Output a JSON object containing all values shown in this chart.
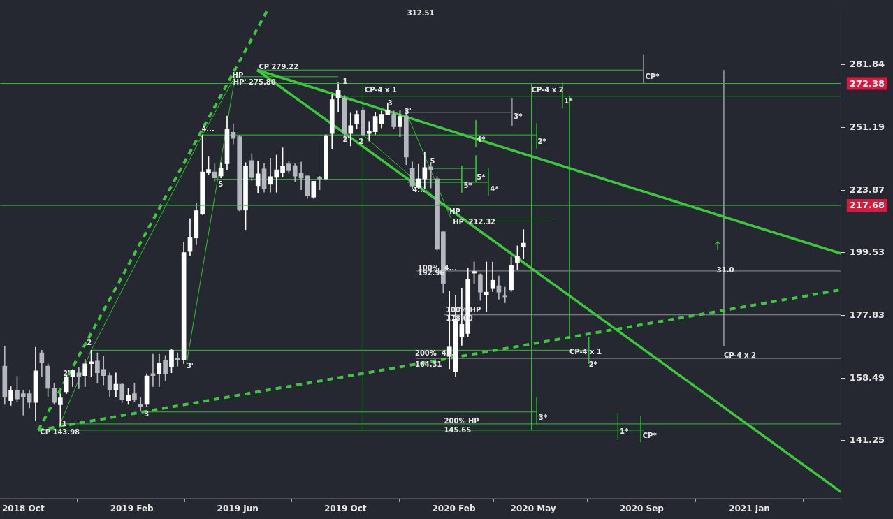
{
  "chart_data": {
    "type": "candlestick",
    "x": [
      "2018-09-10",
      "2018-09-17",
      "2018-09-24",
      "2018-10-01",
      "2018-10-08",
      "2018-10-15",
      "2018-10-22",
      "2018-10-29",
      "2018-11-05",
      "2018-11-12",
      "2018-11-19",
      "2018-11-26",
      "2018-12-03",
      "2018-12-10",
      "2018-12-17",
      "2018-12-24",
      "2018-12-31",
      "2019-01-07",
      "2019-01-14",
      "2019-01-21",
      "2019-01-28",
      "2019-02-04",
      "2019-02-11",
      "2019-02-18",
      "2019-02-25",
      "2019-03-04",
      "2019-03-11",
      "2019-03-18",
      "2019-03-25",
      "2019-04-01",
      "2019-04-08",
      "2019-04-15",
      "2019-04-22",
      "2019-04-29",
      "2019-05-06",
      "2019-05-13",
      "2019-05-20",
      "2019-05-27",
      "2019-06-03",
      "2019-06-10",
      "2019-06-17",
      "2019-06-24",
      "2019-07-01",
      "2019-07-08",
      "2019-07-15",
      "2019-07-22",
      "2019-07-29",
      "2019-08-05",
      "2019-08-12",
      "2019-08-19",
      "2019-08-26",
      "2019-09-02",
      "2019-09-09",
      "2019-09-16",
      "2019-09-23",
      "2019-09-30",
      "2019-10-07",
      "2019-10-14",
      "2019-10-21",
      "2019-10-28",
      "2019-11-04",
      "2019-11-11",
      "2019-11-18",
      "2019-11-25",
      "2019-12-02",
      "2019-12-09",
      "2019-12-16",
      "2019-12-23",
      "2019-12-30",
      "2020-01-06",
      "2020-01-13",
      "2020-01-20",
      "2020-01-27",
      "2020-02-03",
      "2020-02-10",
      "2020-02-17",
      "2020-02-24",
      "2020-03-02",
      "2020-03-09",
      "2020-03-16",
      "2020-03-23",
      "2020-03-30",
      "2020-04-06",
      "2020-04-13",
      "2020-04-20"
    ],
    "ohlc": [
      [
        162,
        168,
        151,
        153
      ],
      [
        152,
        156,
        150.7,
        155
      ],
      [
        155,
        159,
        151.8,
        152.5
      ],
      [
        154,
        155,
        148,
        153
      ],
      [
        154,
        155,
        150,
        151.5
      ],
      [
        151.5,
        167.7,
        146.5,
        160.6
      ],
      [
        166,
        166.8,
        159,
        163
      ],
      [
        162,
        162.7,
        153,
        155.5
      ],
      [
        155.5,
        157,
        151,
        151.5
      ],
      [
        150.9,
        154,
        145.2,
        152.8
      ],
      [
        154.5,
        159.2,
        154,
        158.9
      ],
      [
        158.9,
        161,
        156,
        160.8
      ],
      [
        160,
        161.6,
        155.4,
        159
      ],
      [
        159.2,
        164,
        156,
        162.7
      ],
      [
        162.7,
        166.8,
        159,
        163.3
      ],
      [
        163.5,
        166,
        157,
        160
      ],
      [
        161,
        164.9,
        156.5,
        159.2
      ],
      [
        159.2,
        160,
        153,
        155
      ],
      [
        155,
        160,
        153,
        156.7
      ],
      [
        156.7,
        156.9,
        151.5,
        152.3
      ],
      [
        152,
        155.5,
        151,
        153.6
      ],
      [
        154,
        157,
        151.7,
        152.3
      ],
      [
        151,
        153,
        149.2,
        150.3
      ],
      [
        151,
        159.8,
        150.3,
        159.1
      ],
      [
        159.8,
        165.6,
        156,
        159.2
      ],
      [
        159.8,
        165.6,
        156,
        163
      ],
      [
        163.8,
        165.2,
        157.7,
        159.8
      ],
      [
        161.8,
        167,
        160,
        166.8
      ],
      [
        164.4,
        166,
        162,
        163.9
      ],
      [
        163.9,
        203.5,
        162.7,
        199.6
      ],
      [
        200,
        212.4,
        198.5,
        205.3
      ],
      [
        205,
        218.4,
        202.5,
        215.6
      ],
      [
        214.3,
        247.8,
        214,
        231.5
      ],
      [
        231.3,
        238,
        230.4,
        232.6
      ],
      [
        231.5,
        235,
        227.6,
        229
      ],
      [
        229.8,
        235.5,
        229,
        233
      ],
      [
        235,
        256.6,
        232.5,
        250.6
      ],
      [
        249,
        253,
        243.7,
        246.2
      ],
      [
        247,
        247.6,
        215.5,
        215.8
      ],
      [
        215.8,
        235.5,
        208.2,
        234
      ],
      [
        236.4,
        239.4,
        227.8,
        229.1
      ],
      [
        225.7,
        236,
        222.6,
        230.7
      ],
      [
        232.8,
        235.2,
        223,
        224.6
      ],
      [
        226.3,
        237.5,
        223,
        229.5
      ],
      [
        229.2,
        238.8,
        223,
        232.4
      ],
      [
        231.3,
        242,
        229.4,
        234.1
      ],
      [
        235,
        236,
        231,
        232
      ],
      [
        234.2,
        235,
        227.5,
        229.7
      ],
      [
        230.9,
        235.8,
        224,
        228.9
      ],
      [
        229.8,
        230,
        220.5,
        221.6
      ],
      [
        221,
        227.6,
        220.5,
        227.6
      ],
      [
        229.1,
        229.7,
        224,
        228.6
      ],
      [
        228.6,
        248,
        228,
        247.5
      ],
      [
        248.4,
        266.8,
        241.6,
        264.4
      ],
      [
        265.3,
        272.7,
        258.5,
        269
      ],
      [
        265.2,
        266.5,
        245.2,
        248.4
      ],
      [
        248.4,
        258,
        242.8,
        252.1
      ],
      [
        253.1,
        259,
        250.7,
        257.4
      ],
      [
        259.3,
        260.7,
        247.3,
        247.8
      ],
      [
        248.4,
        254,
        245,
        249.6
      ],
      [
        249.2,
        258.5,
        248,
        256.4
      ],
      [
        253.1,
        259,
        251,
        257.4
      ],
      [
        257.4,
        262.5,
        257,
        259.5
      ],
      [
        257.4,
        259,
        250.7,
        251.6
      ],
      [
        251.6,
        259.5,
        247,
        256.4
      ],
      [
        256.4,
        259.3,
        234.6,
        237.9
      ],
      [
        232.9,
        235.8,
        224.6,
        225.6
      ],
      [
        225,
        234.8,
        224.4,
        228.6
      ],
      [
        228.6,
        240.2,
        224.6,
        233.4
      ],
      [
        233.7,
        235.4,
        224.8,
        232.3
      ],
      [
        228.6,
        229.6,
        200.5,
        200.8
      ],
      [
        207.4,
        207.4,
        185.3,
        188.5
      ],
      [
        164.9,
        186,
        161.2,
        167.8
      ],
      [
        160.2,
        184.5,
        158.9,
        176.7
      ],
      [
        170.9,
        186.8,
        168.3,
        174.9
      ],
      [
        172,
        193.9,
        171,
        189.9
      ],
      [
        192.2,
        196.2,
        188.5,
        192.8
      ],
      [
        191.7,
        192,
        182.8,
        185.6
      ],
      [
        184.6,
        196.2,
        179.1,
        185.6
      ],
      [
        186.8,
        196.2,
        185.8,
        189.7
      ],
      [
        187.8,
        191.2,
        183.2,
        185.6
      ],
      [
        184.3,
        187.3,
        182,
        184.0
      ],
      [
        186.4,
        198,
        185.8,
        195
      ],
      [
        196,
        202.1,
        193.4,
        198.2
      ],
      [
        201.7,
        208.2,
        197.3,
        203.1
      ]
    ],
    "colors": [
      "#b4b7be",
      "#ffffff",
      "#b4b7be",
      "#b4b7be",
      "#b4b7be",
      "#ffffff",
      "#b4b7be",
      "#b4b7be",
      "#b4b7be",
      "#ffffff",
      "#ffffff",
      "#ffffff",
      "#b4b7be",
      "#ffffff",
      "#ffffff",
      "#b4b7be",
      "#b4b7be",
      "#b4b7be",
      "#ffffff",
      "#b4b7be",
      "#ffffff",
      "#b4b7be",
      "#b4b7be",
      "#ffffff",
      "#b4b7be",
      "#ffffff",
      "#b4b7be",
      "#ffffff",
      "#b4b7be",
      "#ffffff",
      "#ffffff",
      "#ffffff",
      "#ffffff",
      "#ffffff",
      "#b4b7be",
      "#ffffff",
      "#ffffff",
      "#b4b7be",
      "#b4b7be",
      "#ffffff",
      "#b4b7be",
      "#ffffff",
      "#b4b7be",
      "#ffffff",
      "#ffffff",
      "#ffffff",
      "#b4b7be",
      "#b4b7be",
      "#b4b7be",
      "#b4b7be",
      "#ffffff",
      "#b4b7be",
      "#ffffff",
      "#ffffff",
      "#ffffff",
      "#b4b7be",
      "#ffffff",
      "#ffffff",
      "#b4b7be",
      "#ffffff",
      "#ffffff",
      "#ffffff",
      "#ffffff",
      "#b4b7be",
      "#ffffff",
      "#b4b7be",
      "#b4b7be",
      "#ffffff",
      "#ffffff",
      "#b4b7be",
      "#b4b7be",
      "#b4b7be",
      "#ffffff",
      "#ffffff",
      "#ffffff",
      "#ffffff",
      "#ffffff",
      "#b4b7be",
      "#ffffff",
      "#ffffff",
      "#b4b7be",
      "#b4b7be",
      "#ffffff",
      "#ffffff",
      "#ffffff"
    ],
    "xlim": [
      "2018-09-05",
      "2021-04-15"
    ],
    "xticks": [
      {
        "value": "2018-10-01",
        "label": "2018 Oct"
      },
      {
        "value": "2019-02-01",
        "label": "2019 Feb"
      },
      {
        "value": "2019-06-01",
        "label": "2019 Jun"
      },
      {
        "value": "2019-10-01",
        "label": "2019 Oct"
      },
      {
        "value": "2020-02-01",
        "label": "2020 Feb"
      },
      {
        "value": "2020-05-01",
        "label": "2020 May"
      },
      {
        "value": "2020-09-01",
        "label": "2020 Sep"
      },
      {
        "value": "2021-01-01",
        "label": "2021 Jan"
      }
    ],
    "ylim": [
      127,
      312
    ],
    "yticks": [
      141.25,
      158.49,
      177.83,
      199.53,
      223.87,
      251.19,
      281.84
    ],
    "log": "y",
    "grid": false,
    "legend": false,
    "series": [
      {
        "type": "line",
        "color": "#3cc83c",
        "x": [
          "2019-06-23",
          "2021-04-15"
        ],
        "values": [
          279.22,
          199.2
        ]
      },
      {
        "type": "line",
        "color": "#3cc83c",
        "x": [
          "2019-06-23",
          "2021-04-15"
        ],
        "values": [
          279.22,
          128.5
        ]
      },
      {
        "type": "line",
        "color": "#3cc83c",
        "line_style": "dashed",
        "x": [
          "2018-10-18",
          "2019-07-05"
        ],
        "values": [
          143.98,
          312
        ]
      },
      {
        "type": "line",
        "color": "#3cc83c",
        "line_style": "dashed",
        "x": [
          "2018-10-18",
          "2021-04-15"
        ],
        "values": [
          143.98,
          186.4
        ]
      },
      {
        "type": "line",
        "color": "#2fbf2f",
        "x": [
          "2018-11-11",
          "2018-12-17",
          "2019-04-22",
          "2019-05-29"
        ],
        "values": [
          145.2,
          166.8,
          247.8,
          275.8
        ]
      },
      {
        "type": "line",
        "color": "#2fbf2f",
        "x": [
          "2019-04-04",
          "2019-05-29"
        ],
        "values": [
          162.7,
          275.8
        ]
      },
      {
        "type": "line",
        "color": "#2fbf2f",
        "x": [
          "2019-10-21",
          "2020-01-21"
        ],
        "values": [
          247.8,
          217.68
        ]
      },
      {
        "type": "line",
        "color": "#2fbf2f",
        "x": [
          "2019-12-10",
          "2020-01-29"
        ],
        "values": [
          257.5,
          212.32
        ]
      },
      {
        "type": "line",
        "color": "#2fbf2f",
        "x": [
          "2019-06-23",
          "2020-09-03"
        ],
        "values": [
          279.22,
          279.22
        ]
      },
      {
        "type": "line",
        "color": "#2fbf2f",
        "x": [
          "2019-05-29",
          "2019-09-23"
        ],
        "values": [
          275.8,
          275.8
        ]
      },
      {
        "type": "line",
        "color": "#2fbf2f",
        "x": [
          "2019-09-23",
          "2021-04-15"
        ],
        "values": [
          266.1,
          266.1
        ]
      },
      {
        "type": "line",
        "color": "#8c9196",
        "x": [
          "2019-12-10",
          "2020-04-07"
        ],
        "values": [
          258.3,
          258.3
        ]
      },
      {
        "type": "line",
        "color": "#2fbf2f",
        "x": [
          "2019-04-22",
          "2020-05-05"
        ],
        "values": [
          247.8,
          247.8
        ]
      },
      {
        "type": "line",
        "color": "#2fbf2f",
        "x": [
          "2019-05-07",
          "2020-02-10"
        ],
        "values": [
          228.4,
          228.4
        ]
      },
      {
        "type": "line",
        "color": "#2fbf2f",
        "x": [
          "2020-01-07",
          "2020-02-26"
        ],
        "values": [
          233,
          233
        ]
      },
      {
        "type": "line",
        "color": "#2fbf2f",
        "x": [
          "2019-12-10",
          "2020-03-11"
        ],
        "values": [
          227.1,
          227.1
        ]
      },
      {
        "type": "line",
        "color": "#2fbf2f",
        "x": [
          "2020-01-29",
          "2020-05-25"
        ],
        "values": [
          212.32,
          212.32
        ]
      },
      {
        "type": "line",
        "color": "#8c9196",
        "x": [
          "2019-12-21",
          "2021-04-15"
        ],
        "values": [
          192.96,
          192.96
        ]
      },
      {
        "type": "line",
        "color": "#8c9196",
        "x": [
          "2020-01-21",
          "2021-04-15"
        ],
        "values": [
          178,
          178
        ]
      },
      {
        "type": "line",
        "color": "#2fbf2f",
        "x": [
          "2018-12-17",
          "2020-07-05"
        ],
        "values": [
          166.8,
          166.8
        ]
      },
      {
        "type": "line",
        "color": "#8c9196",
        "x": [
          "2019-12-21",
          "2021-04-15"
        ],
        "values": [
          164.31,
          164.31
        ]
      },
      {
        "type": "line",
        "color": "#2fbf2f",
        "x": [
          "2019-02-11",
          "2020-05-05"
        ],
        "values": [
          148.9,
          148.9
        ]
      },
      {
        "type": "line",
        "color": "#2fbf2f",
        "x": [
          "2018-11-11",
          "2021-04-15"
        ],
        "values": [
          145.65,
          145.65
        ]
      },
      {
        "type": "line",
        "color": "#2fbf2f",
        "x": [
          "2018-10-18",
          "2020-09-03"
        ],
        "values": [
          143.98,
          143.98
        ]
      },
      {
        "type": "line",
        "color": "#2fbf2f",
        "x": [
          "2019-10-21",
          "2019-10-21"
        ],
        "values": [
          272.38,
          143.98
        ]
      },
      {
        "type": "line",
        "color": "#2fbf2f",
        "x": [
          "2020-04-29",
          "2020-04-29"
        ],
        "values": [
          272.38,
          143.98
        ]
      },
      {
        "type": "line",
        "color": "#2fbf2f",
        "x": [
          "2020-06-11",
          "2020-06-11"
        ],
        "values": [
          266.1,
          170.7
        ]
      },
      {
        "type": "line",
        "color": "#8c9196",
        "x": [
          "2020-12-03",
          "2020-12-03"
        ],
        "values": [
          279.22,
          168
        ]
      },
      {
        "type": "line",
        "color": "#8c9196",
        "x": [
          "2020-09-03",
          "2020-09-03"
        ],
        "values": [
          287,
          272.38
        ]
      },
      {
        "type": "line",
        "color": "#8c9196",
        "x": [
          "2020-04-07",
          "2020-04-07"
        ],
        "values": [
          265,
          252
        ]
      },
      {
        "type": "line",
        "color": "#2fbf2f",
        "x": [
          "2020-05-05",
          "2020-05-05"
        ],
        "values": [
          253.2,
          241.6
        ]
      },
      {
        "type": "line",
        "color": "#2fbf2f",
        "x": [
          "2020-02-26",
          "2020-02-26"
        ],
        "values": [
          254.6,
          242.2
        ]
      },
      {
        "type": "line",
        "color": "#2fbf2f",
        "x": [
          "2020-02-26",
          "2020-02-26"
        ],
        "values": [
          238.6,
          227.1
        ]
      },
      {
        "type": "line",
        "color": "#2fbf2f",
        "x": [
          "2020-02-10",
          "2020-02-10"
        ],
        "values": [
          234.2,
          222.8
        ]
      },
      {
        "type": "line",
        "color": "#2fbf2f",
        "x": [
          "2020-03-11",
          "2020-03-11"
        ],
        "values": [
          232.9,
          221.4
        ]
      },
      {
        "type": "line",
        "color": "#2fbf2f",
        "x": [
          "2020-06-03",
          "2020-06-03"
        ],
        "values": [
          272.7,
          260.3
        ]
      },
      {
        "type": "line",
        "color": "#2fbf2f",
        "x": [
          "2020-07-03",
          "2020-07-03"
        ],
        "values": [
          171,
          162.7
        ]
      },
      {
        "type": "line",
        "color": "#2fbf2f",
        "x": [
          "2020-05-05",
          "2020-05-05"
        ],
        "values": [
          153,
          145.6
        ]
      },
      {
        "type": "line",
        "color": "#2fbf2f",
        "x": [
          "2020-08-05",
          "2020-08-05"
        ],
        "values": [
          148.6,
          141.4
        ]
      },
      {
        "type": "line",
        "color": "#2fbf2f",
        "x": [
          "2020-08-31",
          "2020-08-31"
        ],
        "values": [
          147.9,
          140.8
        ]
      }
    ],
    "ref_lines": [
      {
        "axis": "y",
        "value": 272.38,
        "label": "272.38"
      },
      {
        "axis": "y",
        "value": 217.68,
        "label": "217.68"
      }
    ],
    "annotations": [
      "312.51",
      {
        "text": "CP 279.22",
        "x": "2019-06-25",
        "y": 280.5
      },
      {
        "text": "HP",
        "x": "2019-05-26",
        "y": 276.3
      },
      {
        "text": "HP' 275.80",
        "x": "2019-05-27",
        "y": 272.9
      },
      {
        "text": "CP 143.98",
        "x": "2018-10-20",
        "y": 143.3
      },
      {
        "text": "1",
        "x": "2018-11-14",
        "y": 145.65
      },
      {
        "text": "2",
        "x": "2018-12-12",
        "y": 168.9
      },
      {
        "text": "2'",
        "x": "2018-11-15",
        "y": 159.6
      },
      {
        "text": "3",
        "x": "2019-02-15",
        "y": 148.2
      },
      {
        "text": "3'",
        "x": "2019-04-04",
        "y": 162
      },
      {
        "text": "4...",
        "x": "2019-04-21",
        "y": 250.2
      },
      {
        "text": "5",
        "x": "2019-05-10",
        "y": 226
      },
      {
        "text": "1",
        "x": "2019-09-28",
        "y": 273.2
      },
      {
        "text": "2'",
        "x": "2019-09-28",
        "y": 245.6
      },
      {
        "text": "2",
        "x": "2019-10-16",
        "y": 244.6
      },
      {
        "text": "3",
        "x": "2019-11-18",
        "y": 262.5
      },
      {
        "text": "3'",
        "x": "2019-12-07",
        "y": 258.5
      },
      {
        "text": "4...",
        "x": "2019-12-16",
        "y": 223.9
      },
      {
        "text": "5",
        "x": "2020-01-05",
        "y": 235.9
      },
      {
        "text": "HP",
        "x": "2020-01-27",
        "y": 215
      },
      {
        "text": "HP' 212.32",
        "x": "2020-01-31",
        "y": 211
      },
      {
        "text": "100%  4...",
        "x": "2019-12-22",
        "y": 193.8
      },
      {
        "text": "192.96",
        "x": "2019-12-22",
        "y": 192.1
      },
      {
        "text": "100% HP",
        "x": "2020-01-23",
        "y": 179.5
      },
      {
        "text": "178.00",
        "x": "2020-01-23",
        "y": 176.6
      },
      {
        "text": "200%  4...",
        "x": "2019-12-19",
        "y": 165.8
      },
      {
        "text": "164.31",
        "x": "2019-12-19",
        "y": 162.3
      },
      {
        "text": "200% HP",
        "x": "2020-01-21",
        "y": 146.3
      },
      {
        "text": "145.65",
        "x": "2020-01-21",
        "y": 143.8
      },
      {
        "text": "CP-4 x 1",
        "x": "2019-10-23",
        "y": 269
      },
      {
        "text": "CP-4 x 2",
        "x": "2020-04-29",
        "y": 269
      },
      {
        "text": "1*",
        "x": "2020-06-05",
        "y": 263.4
      },
      {
        "text": "3*",
        "x": "2020-04-09",
        "y": 256.2
      },
      {
        "text": "2*",
        "x": "2020-05-06",
        "y": 244.6
      },
      {
        "text": "4*",
        "x": "2020-02-27",
        "y": 245.6
      },
      {
        "text": "5*",
        "x": "2020-02-27",
        "y": 229.2
      },
      {
        "text": "5*",
        "x": "2020-02-12",
        "y": 225.6
      },
      {
        "text": "4*",
        "x": "2020-03-13",
        "y": 224.2
      },
      {
        "text": "CP*",
        "x": "2020-09-05",
        "y": 275.6
      },
      {
        "text": "CP-4 x 1",
        "x": "2020-06-11",
        "y": 166.2
      },
      {
        "text": "2*",
        "x": "2020-07-03",
        "y": 162.3
      },
      {
        "text": "CP-4 x 2",
        "x": "2020-12-03",
        "y": 165
      },
      {
        "text": "31.0",
        "x": "2020-11-25",
        "y": 193.2
      },
      {
        "text": "3*",
        "x": "2020-05-07",
        "y": 147.2
      },
      {
        "text": "1*",
        "x": "2020-08-07",
        "y": 143.6
      },
      {
        "text": "CP*",
        "x": "2020-09-02",
        "y": 142.5
      }
    ]
  }
}
